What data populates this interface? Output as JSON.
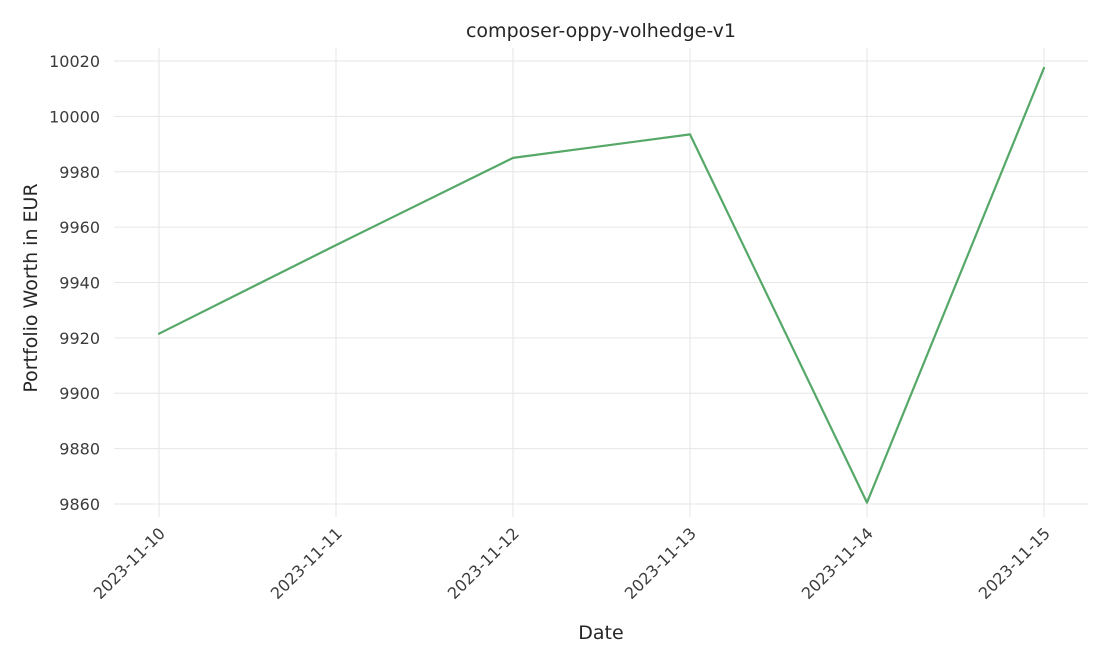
{
  "chart_data": {
    "type": "line",
    "title": "composer-oppy-volhedge-v1",
    "xlabel": "Date",
    "ylabel": "Portfolio Worth in EUR",
    "x": [
      "2023-11-10",
      "2023-11-11",
      "2023-11-12",
      "2023-11-13",
      "2023-11-14",
      "2023-11-15"
    ],
    "series": [
      {
        "values": [
          9921.5,
          9953.5,
          9985,
          9993.5,
          9860.5,
          10017.5
        ],
        "color": "#55a868"
      }
    ],
    "yticks": [
      9860,
      9880,
      9900,
      9920,
      9940,
      9960,
      9980,
      10000,
      10020
    ],
    "ylim": [
      9855.3,
      10024.7
    ],
    "grid": true,
    "legend": "none"
  }
}
